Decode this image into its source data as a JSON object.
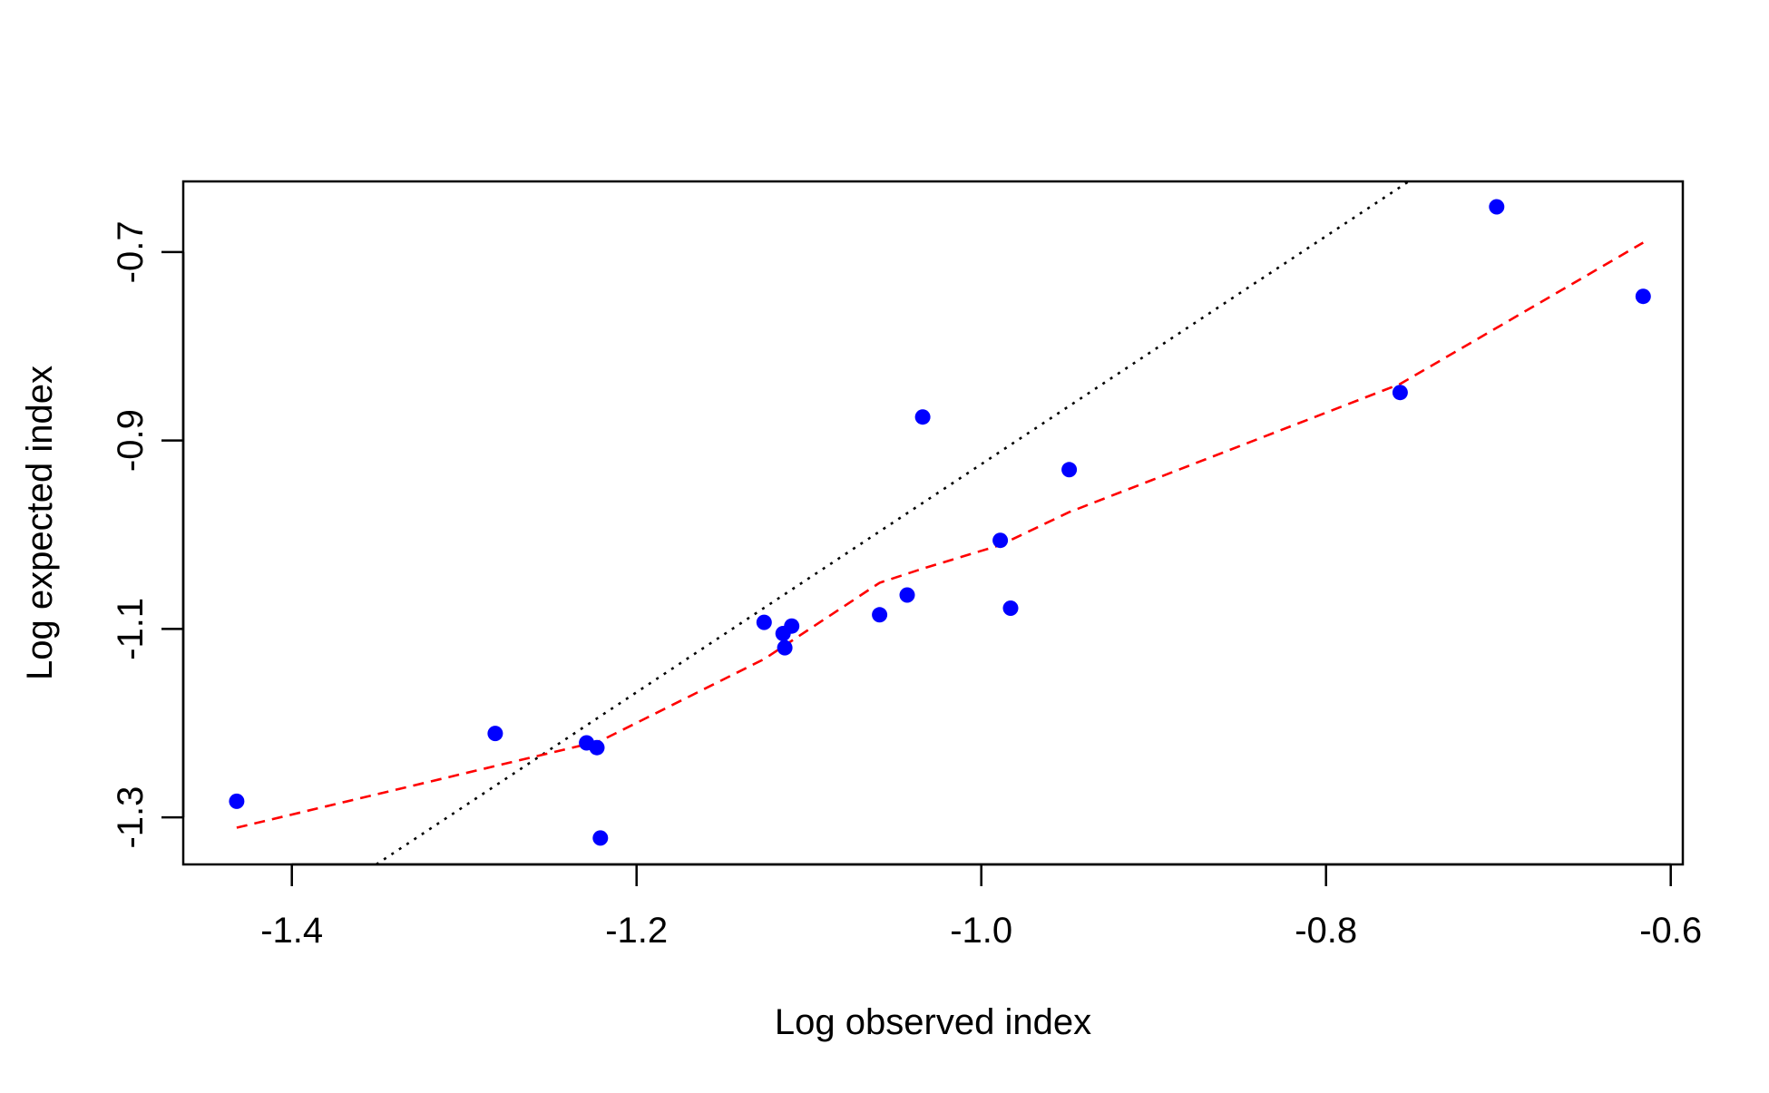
{
  "chart_data": {
    "type": "scatter",
    "title": "",
    "xlabel": "Log observed index",
    "ylabel": "Log expected index",
    "xlim": [
      -1.463,
      -0.593
    ],
    "ylim": [
      -1.35,
      -0.625
    ],
    "x_ticks": [
      -1.4,
      -1.2,
      -1.0,
      -0.8,
      -0.6
    ],
    "x_tick_labels": [
      "-1.4",
      "-1.2",
      "-1.0",
      "-0.8",
      "-0.6"
    ],
    "y_ticks": [
      -1.3,
      -1.1,
      -0.9,
      -0.7
    ],
    "y_tick_labels": [
      "-1.3",
      "-1.1",
      "-0.9",
      "-0.7"
    ],
    "grid": false,
    "points": {
      "color": "#0000ff",
      "x": [
        -1.432,
        -1.282,
        -1.229,
        -1.223,
        -1.221,
        -1.126,
        -1.115,
        -1.114,
        -1.11,
        -1.059,
        -1.043,
        -1.034,
        -0.989,
        -0.983,
        -0.949,
        -0.757,
        -0.701,
        -0.616
      ],
      "y": [
        -1.283,
        -1.211,
        -1.221,
        -1.226,
        -1.322,
        -1.093,
        -1.105,
        -1.12,
        -1.097,
        -1.085,
        -1.064,
        -0.875,
        -1.006,
        -1.078,
        -0.931,
        -0.849,
        -0.652,
        -0.747
      ]
    },
    "series": [
      {
        "type": "line",
        "style": "dotted",
        "color": "#000000",
        "x": [
          -1.351,
          -0.752
        ],
        "y": [
          -1.35,
          -0.625
        ]
      },
      {
        "type": "line",
        "style": "dashed",
        "color": "#ff0000",
        "x": [
          -1.432,
          -1.221,
          -1.126,
          -1.059,
          -1.034,
          -0.989,
          -0.949,
          -0.757,
          -0.616
        ],
        "y": [
          -1.311,
          -1.219,
          -1.132,
          -1.051,
          -1.036,
          -1.011,
          -0.976,
          -0.84,
          -0.69
        ]
      }
    ]
  }
}
